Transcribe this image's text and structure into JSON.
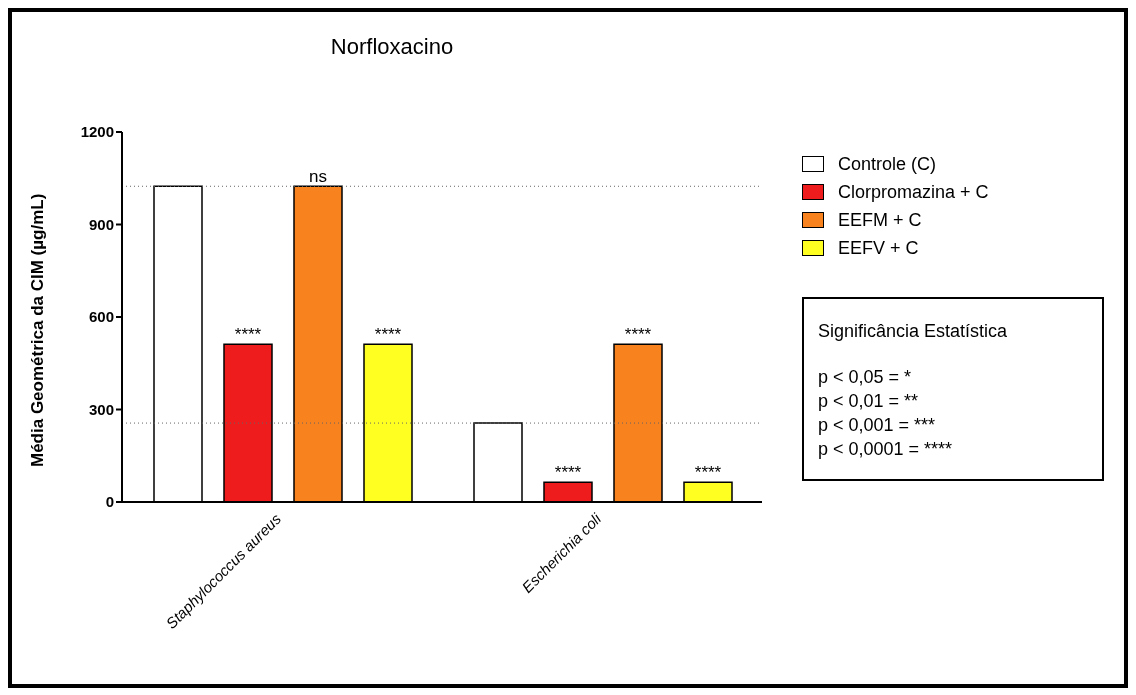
{
  "chart_data": {
    "type": "bar",
    "title": "Norfloxacino",
    "ylabel": "Média Geométrica da CIM (µg/mL)",
    "categories": [
      "Staphylococcus aureus",
      "Escherichia coli"
    ],
    "series": [
      {
        "name": "Controle (C)",
        "color": "#ffffff",
        "values": [
          1024,
          256
        ]
      },
      {
        "name": "Clorpromazina + C",
        "color": "#ee1c1c",
        "values": [
          512,
          64
        ],
        "value_labels": [
          "****",
          "****"
        ]
      },
      {
        "name": "EEFM + C",
        "color": "#f7821e",
        "values": [
          1024,
          512
        ],
        "value_labels": [
          "ns",
          "****"
        ]
      },
      {
        "name": "EEFV + C",
        "color": "#ffff21",
        "values": [
          512,
          64
        ],
        "value_labels": [
          "****",
          "****"
        ]
      }
    ],
    "ylim": [
      0,
      1200
    ],
    "yticks": [
      0,
      300,
      600,
      900,
      1200
    ],
    "grid": false,
    "legend": "top right",
    "ref_lines": [
      {
        "axis": "y",
        "value": 1024,
        "line_style": "dotted"
      },
      {
        "axis": "y",
        "value": 256,
        "line_style": "dotted"
      }
    ],
    "annotations": [
      "Significância Estatística",
      "p < 0,05 = *",
      "p < 0,01 = **",
      "p < 0,001 = ***",
      "p < 0,0001 = ****"
    ]
  }
}
